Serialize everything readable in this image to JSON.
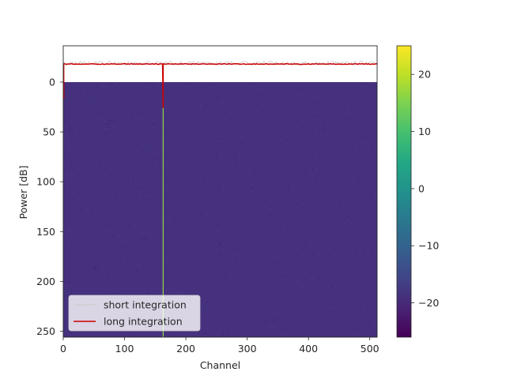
{
  "chart_data": {
    "type": "heatmap",
    "xlabel": "Channel",
    "ylabel": "Power [dB]",
    "xlim": [
      0,
      512
    ],
    "ylim": [
      256,
      0
    ],
    "x_ticks": [
      0,
      100,
      200,
      300,
      400,
      500
    ],
    "y_ticks": [
      0,
      50,
      100,
      150,
      200,
      250
    ],
    "heatmap": {
      "description_value": "noise floor around -22 dB across all channels and rows; strong signal at channel 163 (about 25 dB)",
      "background_level": -22,
      "signal_channel": 163,
      "signal_level": 25,
      "colormap": "viridis",
      "colorbar_range": [
        -26,
        25
      ],
      "colorbar_ticks": [
        -20,
        -10,
        0,
        10,
        20
      ]
    },
    "series": [
      {
        "name": "short integration",
        "color": "#cccccc",
        "baseline": -22,
        "noise": 1.2,
        "spike_channel": 163,
        "spike_min": 25
      },
      {
        "name": "long integration",
        "color": "#cc0000",
        "baseline": -21.5,
        "noise": 0.2,
        "spike_channel": 163,
        "spike_min": 25
      }
    ],
    "legend": {
      "position": "lower-left",
      "entries": [
        "short integration",
        "long integration"
      ]
    },
    "grid": false
  },
  "colors": {
    "axes_edge": "#262626",
    "noise_floor": "#46317e",
    "signal_line": "#90d743"
  }
}
